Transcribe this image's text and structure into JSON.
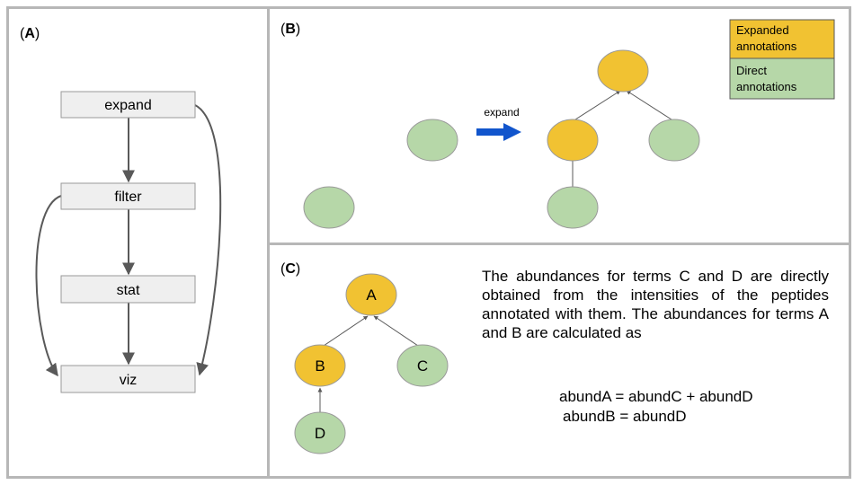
{
  "panelA": {
    "label_open": "(",
    "label_letter": "A",
    "label_close": ")",
    "steps": [
      "expand",
      "filter",
      "stat",
      "viz"
    ]
  },
  "panelB": {
    "label_open": "(",
    "label_letter": "B",
    "label_close": ")",
    "arrow_label": "expand",
    "legend": [
      {
        "line1": "Expanded",
        "line2": "annotations",
        "color": "#f1c232"
      },
      {
        "line1": "Direct",
        "line2": "annotations",
        "color": "#b6d7a8"
      }
    ]
  },
  "panelC": {
    "label_open": "(",
    "label_letter": "C",
    "label_close": ")",
    "nodes": {
      "a": "A",
      "b": "B",
      "c": "C",
      "d": "D"
    },
    "paragraph": "The abundances for terms C and D are directly obtained from the intensities of the peptides annotated with them. The abundances for terms A and B are calculated as",
    "formula1": "abundA = abundC + abundD",
    "formula2": "abundB = abundD"
  },
  "colors": {
    "expanded": "#f1c232",
    "direct": "#b6d7a8",
    "border": "#b7b7b7",
    "box_fill": "#efefef",
    "arrow_blue": "#1155cc"
  }
}
